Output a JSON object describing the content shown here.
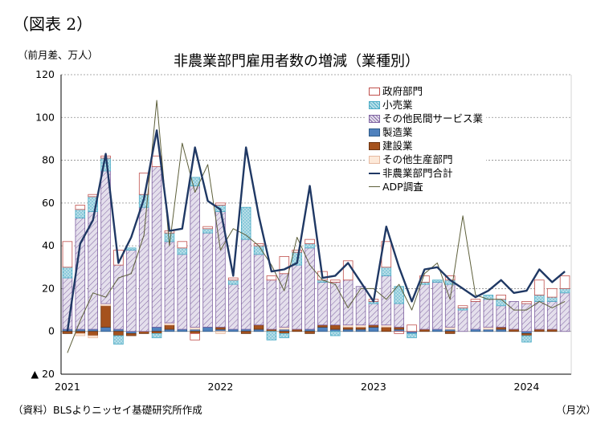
{
  "figure_label": "（図表 2）",
  "title": "非農業部門雇用者数の増減（業種別）",
  "y_unit": "（前月差、万人）",
  "x_unit": "（月次）",
  "source": "（資料）BLSよりニッセイ基礎研究所作成",
  "colors": {
    "gov_stroke": "#c0504d",
    "gov_fill": "#ffffff",
    "retail_stroke": "#4bacc6",
    "retail_fill": "#b7dee8",
    "services_stroke": "#8064a2",
    "services_fill": "#e4dfec",
    "manufacturing": "#4f81bd",
    "construction": "#a5521d",
    "other_stroke": "#e6b9a0",
    "other_fill": "#fde9d9",
    "total": "#1f3864",
    "adp": "#5d5f3a"
  },
  "chart_data": {
    "type": "bar",
    "stacked": true,
    "ylim": [
      -20,
      120
    ],
    "yticks": [
      120,
      100,
      80,
      60,
      40,
      20,
      0,
      -20
    ],
    "ytick_labels": [
      "120",
      "100",
      "80",
      "60",
      "40",
      "20",
      "0",
      "▲ 20"
    ],
    "x_ticks": [
      {
        "index": 0,
        "label": "2021"
      },
      {
        "index": 12,
        "label": "2022"
      },
      {
        "index": 24,
        "label": "2023"
      },
      {
        "index": 36,
        "label": "2024"
      }
    ],
    "grid": "horizontal dotted",
    "legend_position": "top-right",
    "series": [
      {
        "key": "manufacturing",
        "name": "製造業",
        "values": [
          1,
          1,
          1,
          2,
          1,
          -1,
          0,
          2,
          1,
          1,
          1,
          2,
          1,
          1,
          1,
          1,
          0,
          1,
          0,
          1,
          2,
          1,
          1,
          1,
          2,
          0,
          1,
          -1,
          0,
          1,
          1,
          0,
          1,
          1,
          1,
          0,
          -1,
          0,
          0,
          0
        ]
      },
      {
        "key": "construction",
        "name": "建設業",
        "values": [
          -1,
          -1,
          -2,
          10,
          -2,
          -1,
          -1,
          -1,
          2,
          0,
          -1,
          0,
          1,
          0,
          -1,
          2,
          1,
          -1,
          1,
          -1,
          1,
          2,
          1,
          1,
          1,
          2,
          1,
          0,
          1,
          0,
          -1,
          0,
          0,
          0,
          1,
          1,
          -1,
          1,
          1,
          0
        ]
      },
      {
        "key": "other",
        "name": "その他生産部門",
        "values": [
          0,
          -1,
          -1,
          1,
          0,
          0,
          0,
          0,
          1,
          0,
          1,
          0,
          -1,
          0,
          0,
          0,
          0,
          1,
          0,
          0,
          0,
          0,
          1,
          1,
          0,
          1,
          0,
          0,
          0,
          0,
          1,
          0,
          0,
          1,
          0,
          0,
          0,
          0,
          0,
          0
        ]
      },
      {
        "key": "services",
        "name": "その他民間サービス業",
        "values": [
          24,
          52,
          55,
          62,
          30,
          38,
          58,
          75,
          38,
          35,
          66,
          44,
          54,
          21,
          42,
          33,
          23,
          25,
          30,
          38,
          20,
          20,
          21,
          18,
          10,
          23,
          11,
          0,
          21,
          22,
          20,
          10,
          13,
          13,
          10,
          13,
          13,
          13,
          13,
          18
        ]
      },
      {
        "key": "retail",
        "name": "小売業",
        "values": [
          5,
          4,
          7,
          6,
          -4,
          1,
          6,
          -2,
          4,
          3,
          4,
          2,
          3,
          2,
          15,
          4,
          -4,
          -2,
          6,
          2,
          1,
          -2,
          0,
          0,
          1,
          4,
          8,
          -2,
          1,
          1,
          2,
          1,
          0,
          2,
          3,
          0,
          -3,
          3,
          2,
          2
        ]
      },
      {
        "key": "gov",
        "name": "政府部門",
        "values": [
          12,
          2,
          1,
          1,
          7,
          0,
          10,
          5,
          1,
          3,
          -3,
          1,
          1,
          1,
          0,
          1,
          2,
          8,
          1,
          2,
          4,
          1,
          9,
          0,
          1,
          12,
          -1,
          3,
          3,
          0,
          2,
          1,
          1,
          0,
          2,
          0,
          1,
          7,
          4,
          6
        ]
      },
      {
        "key": "total",
        "name": "非農業部門合計",
        "type": "line",
        "values": [
          0,
          41,
          52,
          83,
          32,
          44,
          62,
          94,
          47,
          48,
          86,
          61,
          57,
          26,
          86,
          54,
          28,
          29,
          32,
          68,
          25,
          26,
          32,
          23,
          14,
          49,
          30,
          14,
          29,
          30,
          24,
          20,
          16,
          19,
          24,
          18,
          19,
          29,
          23,
          28
        ]
      },
      {
        "key": "adp",
        "name": "ADP調査",
        "type": "line",
        "values": [
          -10,
          5,
          18,
          16,
          25,
          27,
          45,
          108,
          40,
          88,
          65,
          78,
          38,
          48,
          45,
          40,
          31,
          19,
          44,
          31,
          24,
          22,
          11,
          20,
          20,
          15,
          22,
          10,
          27,
          32,
          15,
          54,
          17,
          15,
          15,
          10,
          10,
          14,
          11,
          14
        ]
      }
    ]
  }
}
